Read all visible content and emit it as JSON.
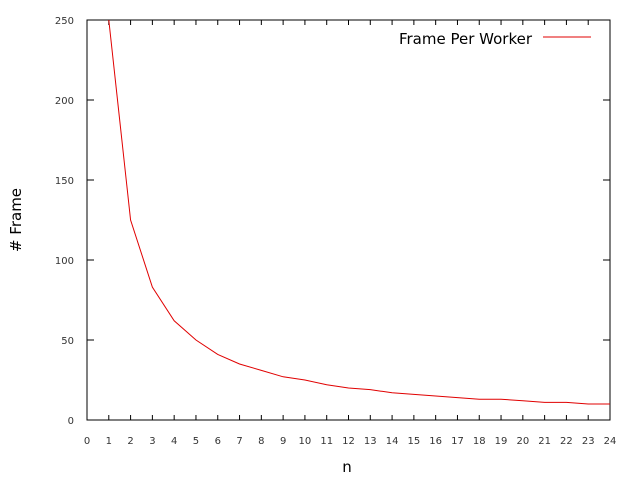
{
  "chart_data": {
    "type": "line",
    "title": "",
    "xlabel": "n",
    "ylabel": "# Frame",
    "xlim": [
      0,
      24
    ],
    "ylim": [
      0,
      250
    ],
    "xticks": [
      0,
      1,
      2,
      3,
      4,
      5,
      6,
      7,
      8,
      9,
      10,
      11,
      12,
      13,
      14,
      15,
      16,
      17,
      18,
      19,
      20,
      21,
      22,
      23,
      24
    ],
    "yticks": [
      0,
      50,
      100,
      150,
      200,
      250
    ],
    "grid": false,
    "legend_position": "top-right",
    "series": [
      {
        "name": "Frame Per Worker",
        "color": "#e00000",
        "x": [
          1,
          2,
          3,
          4,
          5,
          6,
          7,
          8,
          9,
          10,
          11,
          12,
          13,
          14,
          15,
          16,
          17,
          18,
          19,
          20,
          21,
          22,
          23,
          24
        ],
        "y": [
          250,
          125,
          83,
          62,
          50,
          41,
          35,
          31,
          27,
          25,
          22,
          20,
          19,
          17,
          16,
          15,
          14,
          13,
          13,
          12,
          11,
          11,
          10,
          10
        ]
      }
    ]
  }
}
